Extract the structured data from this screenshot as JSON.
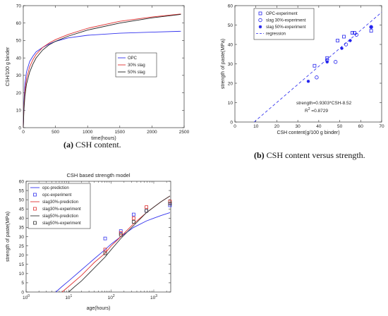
{
  "captions": [
    {
      "letter": "(a)",
      "text": " CSH content."
    },
    {
      "letter": "(b)",
      "text": " CSH content versus strength."
    }
  ],
  "chart_data": [
    {
      "type": "line",
      "title": "",
      "xlabel": "time(hours)",
      "ylabel": "CSH/100 g binder",
      "xlim": [
        0,
        2500
      ],
      "ylim": [
        0,
        70
      ],
      "xticks": [
        0,
        500,
        1000,
        1500,
        2000,
        2500
      ],
      "yticks": [
        0,
        10,
        20,
        30,
        40,
        50,
        60,
        70
      ],
      "legend_position": "right",
      "grid": false,
      "series": [
        {
          "name": "OPC",
          "color": "#3333ee",
          "x": [
            0,
            10,
            25,
            50,
            100,
            150,
            200,
            300,
            400,
            500,
            700,
            1000,
            1500,
            2000,
            2450
          ],
          "y": [
            0,
            14,
            25,
            32,
            38,
            41,
            43.5,
            46,
            48,
            49.5,
            51.5,
            53,
            54.2,
            54.8,
            55.3
          ]
        },
        {
          "name": "30% slag",
          "color": "#e03030",
          "x": [
            0,
            10,
            25,
            50,
            100,
            150,
            200,
            300,
            400,
            500,
            700,
            1000,
            1500,
            2000,
            2450
          ],
          "y": [
            0,
            12,
            21,
            28,
            35,
            39,
            42,
            46,
            48.5,
            50.5,
            53.5,
            57,
            61,
            63.5,
            65.2
          ]
        },
        {
          "name": "50% slag",
          "color": "#222222",
          "x": [
            0,
            10,
            25,
            50,
            100,
            150,
            200,
            300,
            400,
            500,
            700,
            1000,
            1500,
            2000,
            2450
          ],
          "y": [
            0,
            10,
            18,
            25,
            32,
            36.5,
            40,
            44.5,
            47.5,
            49.5,
            52.5,
            56,
            60,
            63,
            65
          ]
        }
      ]
    },
    {
      "type": "scatter",
      "title": "",
      "xlabel": "CSH content(g/100 g binder)",
      "ylabel": "strength of paste(MPa)",
      "xlim": [
        0,
        70
      ],
      "ylim": [
        0,
        60
      ],
      "xticks": [
        0,
        10,
        20,
        30,
        40,
        50,
        60,
        70
      ],
      "yticks": [
        0,
        10,
        20,
        30,
        40,
        50,
        60
      ],
      "legend_position": "top-left",
      "annotation_equation": "strength=0.9303*CSH-8.52",
      "annotation_r2_base": "R",
      "annotation_r2_exp": "2",
      "annotation_r2_value": " =0.8729",
      "series": [
        {
          "name": "OPC-experiment",
          "marker": "square",
          "color": "#2222ee",
          "x": [
            38,
            44,
            49,
            52,
            56,
            57,
            65
          ],
          "y": [
            29,
            33,
            42,
            44,
            46,
            46,
            47
          ]
        },
        {
          "name": "slag 30%-experiment",
          "marker": "circle",
          "color": "#2222ee",
          "x": [
            39,
            44,
            48,
            53,
            58,
            65
          ],
          "y": [
            23,
            32,
            31,
            40,
            45,
            49
          ]
        },
        {
          "name": "slag 50%-experiment",
          "marker": "star",
          "color": "#2222ee",
          "x": [
            35,
            44,
            51,
            55,
            65
          ],
          "y": [
            21,
            31,
            38,
            42,
            49
          ]
        }
      ],
      "regression": {
        "name": "regression",
        "slope": 0.9303,
        "intercept": -8.52,
        "color": "#2222ee",
        "dash": true
      }
    },
    {
      "type": "line",
      "title": "CSH based strength model",
      "xlabel": "age(hours)",
      "ylabel": "strength of paste(MPa)",
      "xscale": "log",
      "xlim": [
        1,
        2500
      ],
      "ylim": [
        0,
        60
      ],
      "yticks": [
        0,
        5,
        10,
        15,
        20,
        25,
        30,
        35,
        40,
        45,
        50,
        55,
        60
      ],
      "xtick_base": "10",
      "xtick_exponents": [
        "0",
        "1",
        "2",
        "3"
      ],
      "legend_position": "top-left",
      "series": [
        {
          "name": "opc-prediction",
          "kind": "line",
          "color": "#3333ee",
          "x": [
            5,
            7,
            10,
            20,
            40,
            72,
            100,
            168,
            336,
            672,
            1000,
            1500,
            2400
          ],
          "y": [
            0,
            3,
            6,
            12,
            18,
            23,
            26,
            30,
            35,
            38.5,
            40,
            41.5,
            43
          ]
        },
        {
          "name": "opc-experiment",
          "kind": "marker",
          "marker": "square",
          "color": "#3333ee",
          "x": [
            72,
            168,
            336,
            672,
            2400
          ],
          "y": [
            29,
            33,
            42,
            44,
            47
          ]
        },
        {
          "name": "slag30%-prediction",
          "kind": "line",
          "color": "#e03030",
          "x": [
            7,
            10,
            20,
            40,
            72,
            100,
            168,
            336,
            672,
            1000,
            1500,
            2400
          ],
          "y": [
            0,
            3,
            9,
            16,
            21,
            25,
            30,
            37,
            43,
            46,
            49,
            52
          ]
        },
        {
          "name": "slag30%-experiment",
          "kind": "marker",
          "marker": "square",
          "color": "#e03030",
          "x": [
            72,
            168,
            336,
            672,
            2400
          ],
          "y": [
            23,
            32,
            40,
            46,
            49
          ]
        },
        {
          "name": "slag50%-prediction",
          "kind": "line",
          "color": "#333333",
          "x": [
            10,
            14,
            20,
            40,
            72,
            100,
            168,
            336,
            672,
            1000,
            1500,
            2400
          ],
          "y": [
            0,
            3,
            6,
            13,
            19,
            23,
            29,
            36,
            43,
            46,
            49,
            52
          ]
        },
        {
          "name": "slag50%-experiment",
          "kind": "marker",
          "marker": "square",
          "color": "#333333",
          "x": [
            72,
            168,
            336,
            672,
            2400
          ],
          "y": [
            21,
            31,
            38,
            44,
            48
          ]
        }
      ]
    }
  ]
}
